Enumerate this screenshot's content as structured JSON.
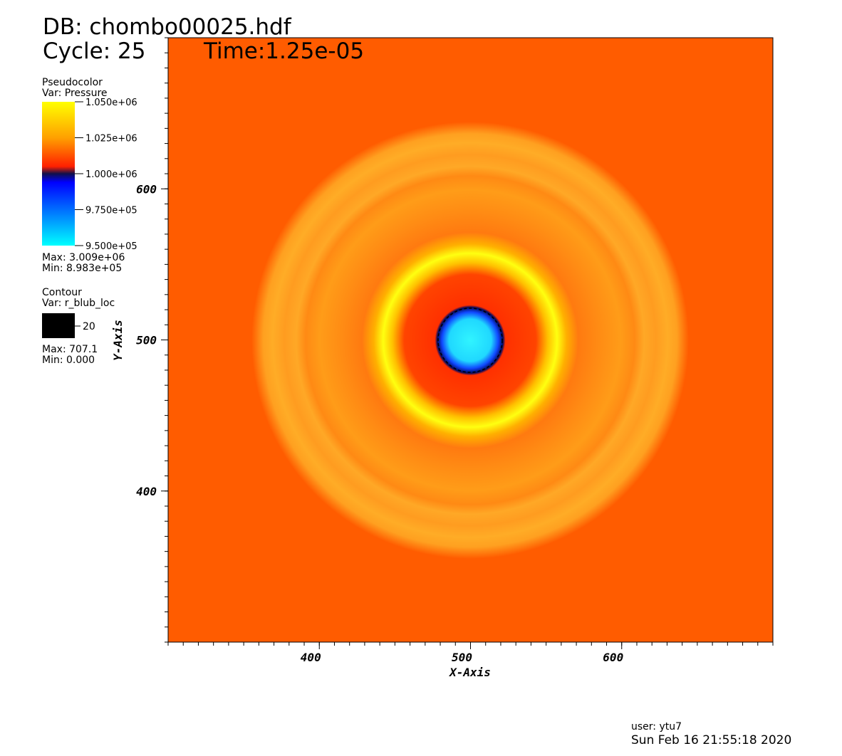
{
  "header": {
    "db": "DB: chombo00025.hdf",
    "cycle": "Cycle: 25",
    "time": "Time:1.25e-05"
  },
  "legend": {
    "pseudocolor": {
      "title": "Pseudocolor",
      "var": "Var: Pressure",
      "ticks": [
        {
          "value": 1050000,
          "label": "1.050e+06"
        },
        {
          "value": 1025000,
          "label": "1.025e+06"
        },
        {
          "value": 1000000,
          "label": "1.000e+06"
        },
        {
          "value": 975000,
          "label": "9.750e+05"
        },
        {
          "value": 950000,
          "label": "9.500e+05"
        }
      ],
      "max": "Max: 3.009e+06",
      "min": "Min: 8.983e+05"
    },
    "contour": {
      "title": "Contour",
      "var": "Var: r_blub_loc",
      "levels": [
        20
      ],
      "max": "Max: 707.1",
      "min": "Min: 0.000"
    }
  },
  "chart_data": {
    "type": "pseudocolor",
    "xlabel": "X-Axis",
    "ylabel": "Y-Axis",
    "xlim": [
      300,
      700
    ],
    "ylim": [
      300,
      700
    ],
    "xticks": [
      400,
      500,
      600
    ],
    "yticks": [
      400,
      500,
      600
    ]
  },
  "footer": {
    "user": "user: ytu7",
    "date": "Sun Feb 16 21:55:18 2020"
  }
}
